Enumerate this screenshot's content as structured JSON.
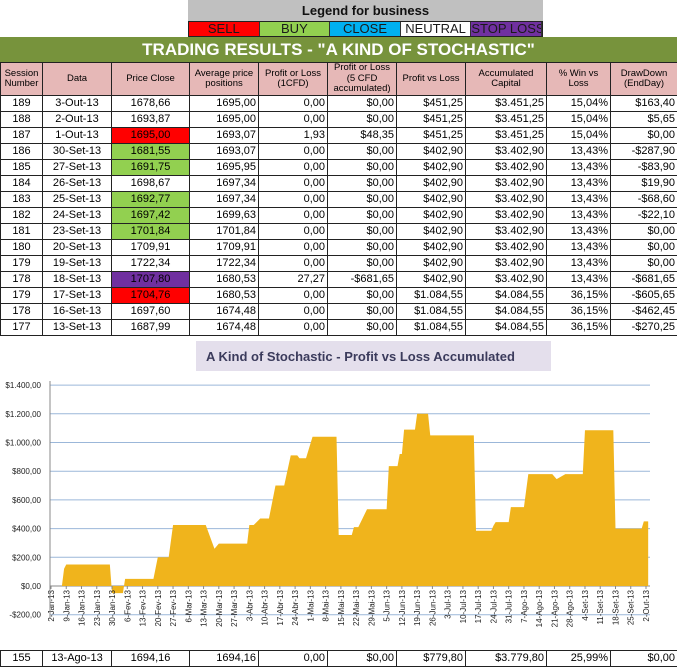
{
  "legend": {
    "title": "Legend for business",
    "items": [
      {
        "label": "SELL",
        "color": "#ff0000",
        "text": "#1a1a1a"
      },
      {
        "label": "BUY",
        "color": "#92d050",
        "text": "#1a1a1a"
      },
      {
        "label": "CLOSE",
        "color": "#00b0f0",
        "text": "#1a1a1a"
      },
      {
        "label": "NEUTRAL",
        "color": "#ffffff",
        "text": "#1a1a1a"
      },
      {
        "label": "STOP LOSS",
        "color": "#7030a0",
        "text": "#1a1a1a"
      }
    ]
  },
  "title": "TRADING RESULTS - \"A KIND OF STOCHASTIC\"",
  "headers": [
    "Session Number",
    "Data",
    "Price Close",
    "Average price positions",
    "Profit or Loss (1CFD)",
    "Profit or Loss (5 CFD accumulated)",
    "Profit vs Loss",
    "Accumulated Capital",
    "% Win vs Loss",
    "DrawDown (EndDay)"
  ],
  "rows": [
    [
      "189",
      "3-Out-13",
      "1678,66",
      "1695,00",
      "0,00",
      "$0,00",
      "$451,25",
      "$3.451,25",
      "15,04%",
      "$163,40",
      ""
    ],
    [
      "188",
      "2-Out-13",
      "1693,87",
      "1695,00",
      "0,00",
      "$0,00",
      "$451,25",
      "$3.451,25",
      "15,04%",
      "$5,65",
      ""
    ],
    [
      "187",
      "1-Out-13",
      "1695,00",
      "1693,07",
      "1,93",
      "$48,35",
      "$451,25",
      "$3.451,25",
      "15,04%",
      "$0,00",
      "#ff0000"
    ],
    [
      "186",
      "30-Set-13",
      "1681,55",
      "1693,07",
      "0,00",
      "$0,00",
      "$402,90",
      "$3.402,90",
      "13,43%",
      "-$287,90",
      "#92d050"
    ],
    [
      "185",
      "27-Set-13",
      "1691,75",
      "1695,95",
      "0,00",
      "$0,00",
      "$402,90",
      "$3.402,90",
      "13,43%",
      "-$83,90",
      "#92d050"
    ],
    [
      "184",
      "26-Set-13",
      "1698,67",
      "1697,34",
      "0,00",
      "$0,00",
      "$402,90",
      "$3.402,90",
      "13,43%",
      "$19,90",
      ""
    ],
    [
      "183",
      "25-Set-13",
      "1692,77",
      "1697,34",
      "0,00",
      "$0,00",
      "$402,90",
      "$3.402,90",
      "13,43%",
      "-$68,60",
      "#92d050"
    ],
    [
      "182",
      "24-Set-13",
      "1697,42",
      "1699,63",
      "0,00",
      "$0,00",
      "$402,90",
      "$3.402,90",
      "13,43%",
      "-$22,10",
      "#92d050"
    ],
    [
      "181",
      "23-Set-13",
      "1701,84",
      "1701,84",
      "0,00",
      "$0,00",
      "$402,90",
      "$3.402,90",
      "13,43%",
      "$0,00",
      "#92d050"
    ],
    [
      "180",
      "20-Set-13",
      "1709,91",
      "1709,91",
      "0,00",
      "$0,00",
      "$402,90",
      "$3.402,90",
      "13,43%",
      "$0,00",
      ""
    ],
    [
      "179",
      "19-Set-13",
      "1722,34",
      "1722,34",
      "0,00",
      "$0,00",
      "$402,90",
      "$3.402,90",
      "13,43%",
      "$0,00",
      ""
    ],
    [
      "178",
      "18-Set-13",
      "1707,80",
      "1680,53",
      "27,27",
      "-$681,65",
      "$402,90",
      "$3.402,90",
      "13,43%",
      "-$681,65",
      "#7030a0"
    ],
    [
      "179",
      "17-Set-13",
      "1704,76",
      "1680,53",
      "0,00",
      "$0,00",
      "$1.084,55",
      "$4.084,55",
      "36,15%",
      "-$605,65",
      "#ff0000"
    ],
    [
      "178",
      "16-Set-13",
      "1697,60",
      "1674,48",
      "0,00",
      "$0,00",
      "$1.084,55",
      "$4.084,55",
      "36,15%",
      "-$462,45",
      ""
    ],
    [
      "177",
      "13-Set-13",
      "1687,99",
      "1674,48",
      "0,00",
      "$0,00",
      "$1.084,55",
      "$4.084,55",
      "36,15%",
      "-$270,25",
      ""
    ]
  ],
  "bottom_row": [
    "155",
    "13-Ago-13",
    "1694,16",
    "1694,16",
    "0,00",
    "$0,00",
    "$779,80",
    "$3.779,80",
    "25,99%",
    "$0,00",
    ""
  ],
  "chart_data": {
    "type": "area",
    "title": "A Kind of Stochastic - Profit vs Loss Accumulated",
    "xlabel": "",
    "ylabel": "",
    "ylim": [
      -200,
      1400
    ],
    "yticks": [
      "-$200,00",
      "$0,00",
      "$200,00",
      "$400,00",
      "$600,00",
      "$800,00",
      "$1.000,00",
      "$1.200,00",
      "$1.400,00"
    ],
    "ytick_values": [
      -200,
      0,
      200,
      400,
      600,
      800,
      1000,
      1200,
      1400
    ],
    "xlim": [
      "2013-01-02",
      "2013-10-02"
    ],
    "xticks": [
      "2-Jan-13",
      "9-Jan-13",
      "16-Jan-13",
      "23-Jan-13",
      "30-Jan-13",
      "6-Fev-13",
      "13-Fev-13",
      "20-Fev-13",
      "27-Fev-13",
      "6-Mar-13",
      "13-Mar-13",
      "20-Mar-13",
      "27-Mar-13",
      "3-Abr-13",
      "10-Abr-13",
      "17-Abr-13",
      "24-Abr-13",
      "1-Mai-13",
      "8-Mai-13",
      "15-Mai-13",
      "22-Mai-13",
      "29-Mai-13",
      "5-Jun-13",
      "12-Jun-13",
      "19-Jun-13",
      "26-Jun-13",
      "3-Jul-13",
      "10-Jul-13",
      "17-Jul-13",
      "24-Jul-13",
      "31-Jul-13",
      "7-Ago-13",
      "14-Ago-13",
      "21-Ago-13",
      "28-Ago-13",
      "4-Set-13",
      "11-Set-13",
      "18-Set-13",
      "25-Set-13",
      "2-Out-13"
    ],
    "grid": true,
    "color": "#f0b41c",
    "points": [
      [
        "2013-01-07",
        0
      ],
      [
        "2013-01-08",
        120
      ],
      [
        "2013-01-09",
        150
      ],
      [
        "2013-01-29",
        150
      ],
      [
        "2013-01-30",
        -50
      ],
      [
        "2013-02-04",
        -50
      ],
      [
        "2013-02-05",
        50
      ],
      [
        "2013-02-18",
        50
      ],
      [
        "2013-02-20",
        200
      ],
      [
        "2013-02-25",
        200
      ],
      [
        "2013-02-27",
        425
      ],
      [
        "2013-03-14",
        425
      ],
      [
        "2013-03-18",
        260
      ],
      [
        "2013-03-20",
        295
      ],
      [
        "2013-04-02",
        295
      ],
      [
        "2013-04-03",
        425
      ],
      [
        "2013-04-05",
        425
      ],
      [
        "2013-04-08",
        470
      ],
      [
        "2013-04-12",
        470
      ],
      [
        "2013-04-15",
        700
      ],
      [
        "2013-04-19",
        700
      ],
      [
        "2013-04-22",
        910
      ],
      [
        "2013-04-25",
        910
      ],
      [
        "2013-04-26",
        890
      ],
      [
        "2013-04-29",
        890
      ],
      [
        "2013-05-02",
        1040
      ],
      [
        "2013-05-13",
        1040
      ],
      [
        "2013-05-14",
        355
      ],
      [
        "2013-05-20",
        355
      ],
      [
        "2013-05-21",
        410
      ],
      [
        "2013-05-23",
        410
      ],
      [
        "2013-05-27",
        535
      ],
      [
        "2013-06-05",
        535
      ],
      [
        "2013-06-06",
        835
      ],
      [
        "2013-06-10",
        835
      ],
      [
        "2013-06-11",
        920
      ],
      [
        "2013-06-12",
        920
      ],
      [
        "2013-06-13",
        1090
      ],
      [
        "2013-06-18",
        1090
      ],
      [
        "2013-06-19",
        1200
      ],
      [
        "2013-06-24",
        1200
      ],
      [
        "2013-06-25",
        1050
      ],
      [
        "2013-07-15",
        1050
      ],
      [
        "2013-07-16",
        385
      ],
      [
        "2013-07-23",
        385
      ],
      [
        "2013-07-24",
        420
      ],
      [
        "2013-07-25",
        445
      ],
      [
        "2013-07-31",
        445
      ],
      [
        "2013-08-01",
        550
      ],
      [
        "2013-08-07",
        550
      ],
      [
        "2013-08-09",
        780
      ],
      [
        "2013-08-20",
        780
      ],
      [
        "2013-08-22",
        745
      ],
      [
        "2013-08-26",
        780
      ],
      [
        "2013-09-03",
        780
      ],
      [
        "2013-09-04",
        1085
      ],
      [
        "2013-09-17",
        1085
      ],
      [
        "2013-09-18",
        400
      ],
      [
        "2013-09-30",
        400
      ],
      [
        "2013-10-01",
        450
      ],
      [
        "2013-10-03",
        450
      ]
    ]
  }
}
